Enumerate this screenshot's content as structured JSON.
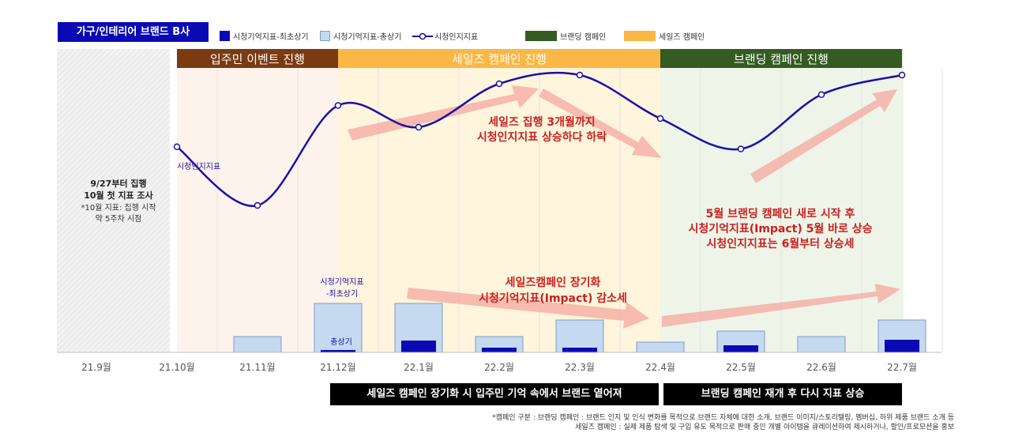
{
  "title": "가구/인테리어 브랜드 B사",
  "legend": {
    "first_recall": "시청기억지표-최초상기",
    "total_recall": "시청기억지표-총상기",
    "awareness": "시청인지지표",
    "branding": "브랜딩 캠페인",
    "sales": "세일즈 캠페인"
  },
  "colors": {
    "title_bg": "#0a0ab4",
    "first_recall": "#0a0ab4",
    "total_recall": "#c5d9f1",
    "line": "#1a10a8",
    "event_phase": "#7a3b12",
    "sales_phase": "#fbb745",
    "branding_phase": "#355a22",
    "annotation": "#cc1f1f",
    "arrow": "#f4a7a0"
  },
  "phases": [
    {
      "label": "입주민 이벤트 진행"
    },
    {
      "label": "세일즈 캠페인 진행"
    },
    {
      "label": "브랜딩 캠페인 진행"
    }
  ],
  "pre_survey_note": {
    "line1": "9/27부터 집행",
    "line2": "10월 첫 지표 조사",
    "line3": "*10월 지표: 집행 시작",
    "line4": "약 5주차 시점"
  },
  "series_labels": {
    "awareness": "시청인지지표",
    "recall_title1": "시청기억지표",
    "recall_title2": "-최초상기",
    "total": "총상기"
  },
  "annotations": {
    "a1_line1": "세일즈 집행 3개월까지",
    "a1_line2": "시청인지지표 상승하다 하락",
    "a2_line1": "5월 브랜딩 캠페인 새로 시작 후",
    "a2_line2": "시청기억지표(Impact) 5월 바로 상승",
    "a2_line3": "시청인지지표는 6월부터 상승세",
    "a3_line1": "세일즈캠페인 장기화",
    "a3_line2": "시청기억지표(Impact) 감소세"
  },
  "bottom_boxes": {
    "left": "세일즈 캠페인 장기화 시 입주민 기억 속에서 브랜드 옅어져",
    "right": "브랜딩 캠페인 재개 후 다시 지표 상승"
  },
  "footnote": {
    "line1": "*캠페인 구분 : 브랜딩 캠페인 : 브랜드 인지 및 인식 변화를 목적으로 브랜드 자체에 대한 소개, 브랜드 이미지/스토리텔링, 멤버십, 하위 제품 브랜드 소개 등",
    "line2": "세일즈 캠페인 : 실제 제품 탐색 및 구입 유도 목적으로 판매 중인 개별 아이템을 큐레이션하여 제시하거나, 할인/프로모션을 홍보"
  },
  "chart_data": {
    "type": "bar+line",
    "categories": [
      "21.9월",
      "21.10월",
      "21.11월",
      "21.12월",
      "22.1월",
      "22.2월",
      "22.3월",
      "22.4월",
      "22.5월",
      "22.6월",
      "22.7월"
    ],
    "series": [
      {
        "name": "시청기억지표-총상기",
        "type": "bar",
        "values": [
          null,
          0,
          20,
          62,
          62,
          20,
          41,
          13,
          27,
          20,
          41
        ]
      },
      {
        "name": "시청기억지표-최초상기",
        "type": "bar",
        "values": [
          null,
          0,
          0,
          3,
          15,
          6,
          6,
          0,
          9,
          0,
          16
        ]
      },
      {
        "name": "시청인지지표",
        "type": "line",
        "values": [
          null,
          63,
          36,
          82,
          72,
          92,
          96,
          76,
          62,
          87,
          96
        ]
      }
    ],
    "ylim": [
      0,
      100
    ],
    "phase_ranges": [
      {
        "name": "입주민 이벤트 진행",
        "from": "21.10월",
        "to": "21.12월"
      },
      {
        "name": "세일즈 캠페인 진행",
        "from": "21.12월",
        "to": "22.4월"
      },
      {
        "name": "브랜딩 캠페인 진행",
        "from": "22.4월",
        "to": "22.7월"
      }
    ]
  }
}
